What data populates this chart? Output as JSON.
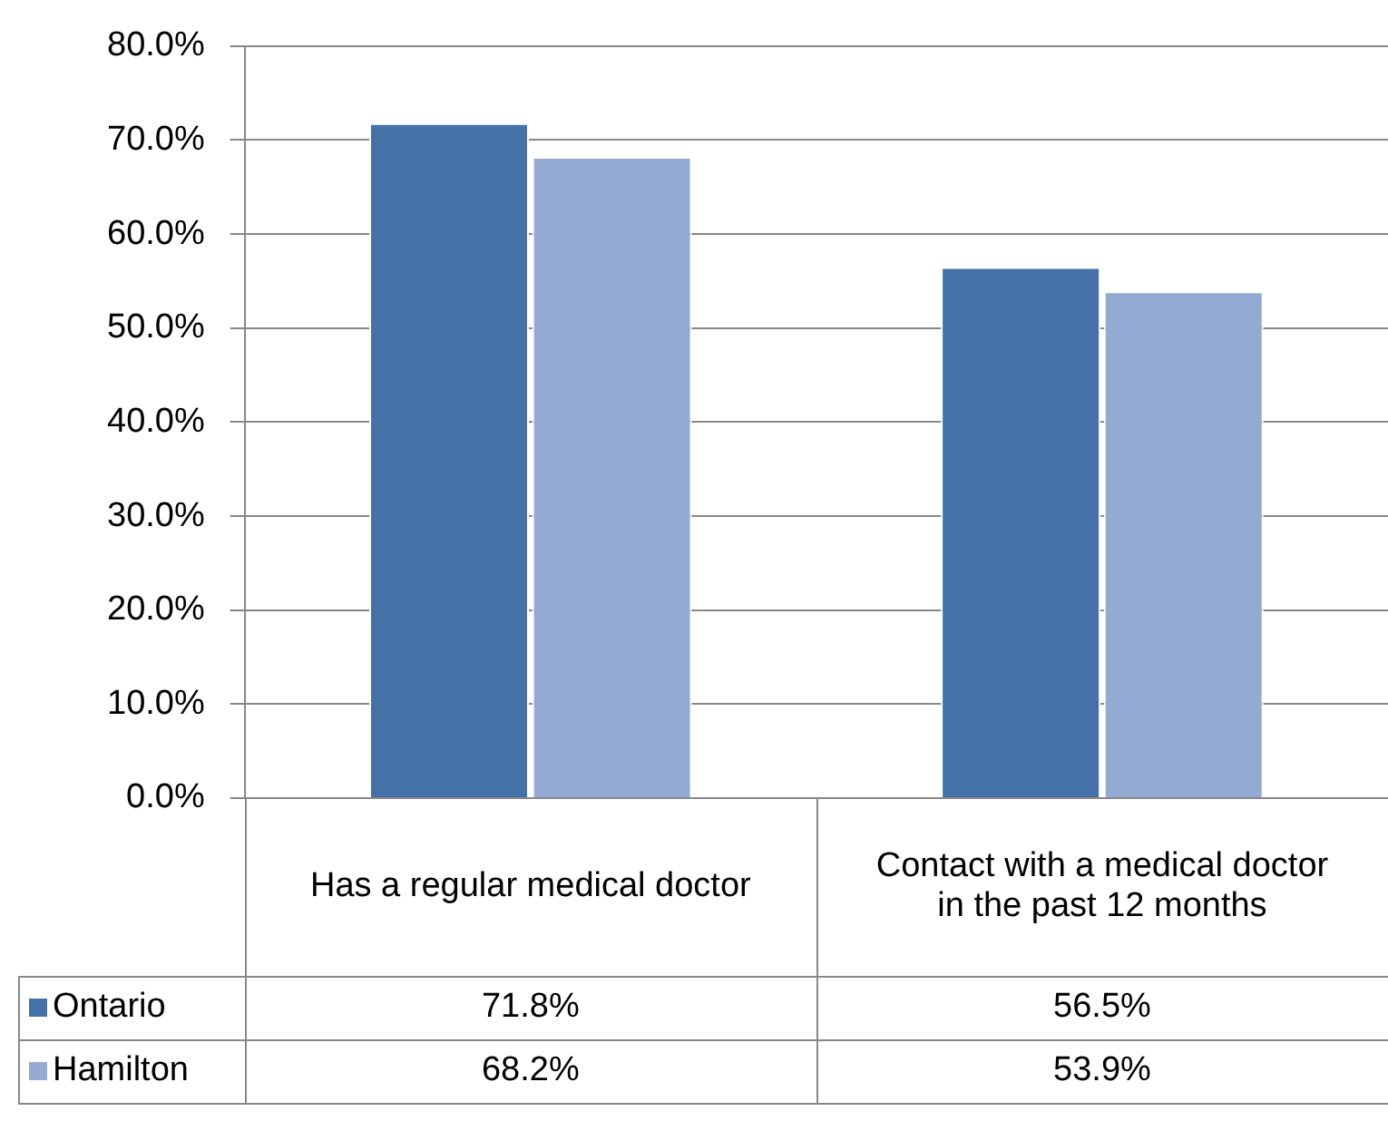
{
  "chart_data": {
    "type": "bar",
    "categories": [
      "Has a regular medical doctor",
      "Contact with a medical doctor in the past 12 months"
    ],
    "series": [
      {
        "name": "Ontario",
        "color": "#4471a7",
        "values": [
          71.8,
          56.5
        ],
        "value_labels": [
          "71.8%",
          "56.5%"
        ]
      },
      {
        "name": "Hamilton",
        "color": "#95aad3",
        "values": [
          68.2,
          53.9
        ],
        "value_labels": [
          "68.2%",
          "53.9%"
        ]
      }
    ],
    "ylim": [
      0,
      80
    ],
    "yticks": [
      {
        "value": 0,
        "label": "0.0%"
      },
      {
        "value": 10,
        "label": "10.0%"
      },
      {
        "value": 20,
        "label": "20.0%"
      },
      {
        "value": 30,
        "label": "30.0%"
      },
      {
        "value": 40,
        "label": "40.0%"
      },
      {
        "value": 50,
        "label": "50.0%"
      },
      {
        "value": 60,
        "label": "60.0%"
      },
      {
        "value": 70,
        "label": "70.0%"
      },
      {
        "value": 80,
        "label": "80.0%"
      }
    ],
    "grid": "y",
    "legend": "bottom"
  }
}
